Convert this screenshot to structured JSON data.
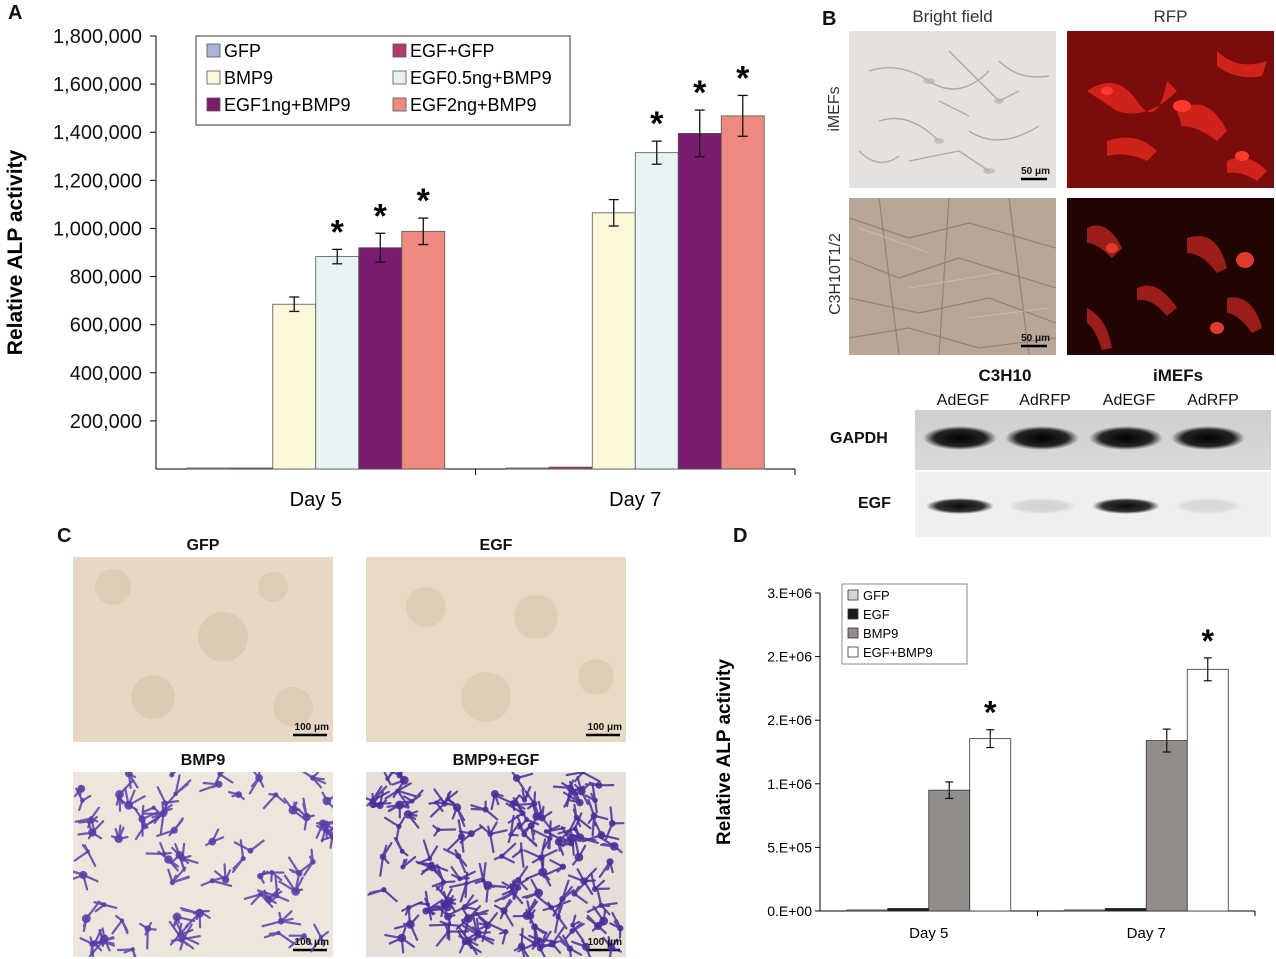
{
  "panels": {
    "a": "A",
    "b": "B",
    "c": "C",
    "d": "D"
  },
  "panel_b": {
    "col_headers": [
      "Bright field",
      "RFP"
    ],
    "row_labels": [
      "iMEFs",
      "C3H10T1/2"
    ],
    "scale_bar": "50 μm",
    "gel": {
      "groups": [
        "C3H10",
        "iMEFs"
      ],
      "lanes": [
        "AdEGF",
        "AdRFP",
        "AdEGF",
        "AdRFP"
      ],
      "rows": [
        "GAPDH",
        "EGF"
      ],
      "egf_band_strength": [
        0.95,
        0.12,
        0.95,
        0.1
      ]
    }
  },
  "panel_c": {
    "titles": [
      "GFP",
      "EGF",
      "BMP9",
      "BMP9+EGF"
    ],
    "scale_bar": "100 μm"
  },
  "chart_data": [
    {
      "type": "bar",
      "panel": "A",
      "categories": [
        "Day 5",
        "Day 7"
      ],
      "ylabel": "Relative ALP activity",
      "xlabel": "",
      "ylim": [
        0,
        1800000
      ],
      "yticks": [
        "200,000",
        "400,000",
        "600,000",
        "800,000",
        "1,000,000",
        "1,200,000",
        "1,400,000",
        "1,600,000",
        "1,800,000"
      ],
      "ytick_values": [
        200000,
        400000,
        600000,
        800000,
        1000000,
        1200000,
        1400000,
        1600000,
        1800000
      ],
      "legend_position": "top-center",
      "series": [
        {
          "name": "GFP",
          "color": "#a9b5d8",
          "values": [
            3000,
            3000
          ],
          "errors": [
            0,
            0
          ],
          "star": [
            false,
            false
          ]
        },
        {
          "name": "EGF+GFP",
          "color": "#b53a6e",
          "values": [
            4000,
            8000
          ],
          "errors": [
            0,
            0
          ],
          "star": [
            false,
            false
          ]
        },
        {
          "name": "BMP9",
          "color": "#fbf7d8",
          "values": [
            685000,
            1065000
          ],
          "errors": [
            30000,
            55000
          ],
          "star": [
            false,
            false
          ]
        },
        {
          "name": "EGF0.5ng+BMP9",
          "color": "#e6f3f3",
          "values": [
            883000,
            1315000
          ],
          "errors": [
            30000,
            48000
          ],
          "star": [
            true,
            true
          ]
        },
        {
          "name": "EGF1ng+BMP9",
          "color": "#7a1c6e",
          "values": [
            920000,
            1395000
          ],
          "errors": [
            60000,
            97000
          ],
          "star": [
            true,
            true
          ]
        },
        {
          "name": "EGF2ng+BMP9",
          "color": "#ee8a80",
          "values": [
            988000,
            1468000
          ],
          "errors": [
            55000,
            85000
          ],
          "star": [
            true,
            true
          ]
        }
      ],
      "star_label": "*"
    },
    {
      "type": "bar",
      "panel": "D",
      "categories": [
        "Day 5",
        "Day 7"
      ],
      "ylabel": "Relative ALP activity",
      "xlabel": "",
      "ylim": [
        0,
        3000000
      ],
      "yticks": [
        "0.E+00",
        "5.E+05",
        "1.E+06",
        "2.E+06",
        "2.E+06",
        "3.E+06"
      ],
      "ytick_values": [
        0,
        500000,
        1000000,
        1500000,
        2000000,
        2500000
      ],
      "legend_position": "top-left",
      "series": [
        {
          "name": "GFP",
          "color": "#d4d4d4",
          "values": [
            8000,
            8000
          ],
          "errors": [
            0,
            0
          ],
          "star": [
            false,
            false
          ]
        },
        {
          "name": "EGF",
          "color": "#1a1a1a",
          "values": [
            20000,
            20000
          ],
          "errors": [
            0,
            0
          ],
          "star": [
            false,
            false
          ]
        },
        {
          "name": "BMP9",
          "color": "#928d89",
          "values": [
            950000,
            1340000
          ],
          "errors": [
            65000,
            90000
          ],
          "star": [
            false,
            false
          ]
        },
        {
          "name": "EGF+BMP9",
          "color": "#ffffff",
          "values": [
            1355000,
            1900000
          ],
          "errors": [
            70000,
            90000
          ],
          "star": [
            true,
            true
          ]
        }
      ],
      "star_label": "*"
    }
  ]
}
